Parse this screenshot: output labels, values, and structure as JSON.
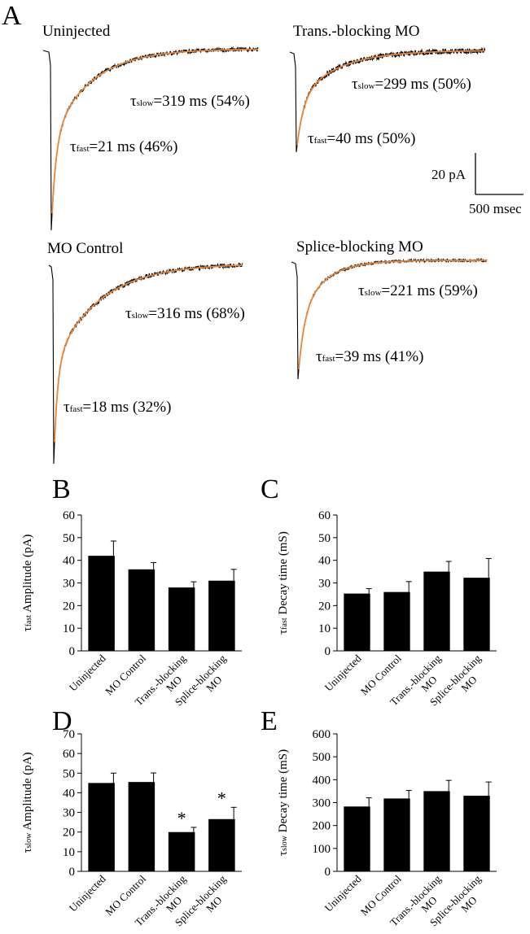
{
  "panel_a": {
    "letter": "A",
    "scale_bar": {
      "amplitude": "20 pA",
      "time": "500 msec"
    },
    "traces": [
      {
        "title": "Uninjected",
        "tau_slow": "=319 ms (54%)",
        "tau_fast": "=21 ms (46%)"
      },
      {
        "title": "Trans.-blocking MO",
        "tau_slow": "=299 ms (50%)",
        "tau_fast": "=40 ms (50%)"
      },
      {
        "title": "MO Control",
        "tau_slow": "=316 ms (68%)",
        "tau_fast": "=18 ms (32%)"
      },
      {
        "title": "Splice-blocking MO",
        "tau_slow": "=221 ms (59%)",
        "tau_fast": "=39 ms (41%)"
      }
    ],
    "tau_symbol": "τ",
    "sub_slow": "slow",
    "sub_fast": "fast",
    "colors": {
      "trace": "#000000",
      "fit": "#e8873a"
    }
  },
  "chart_data": [
    {
      "type": "bar",
      "panel": "B",
      "categories": [
        "Uninjected",
        "MO Control",
        "Trans.-blocking MO",
        "Splice-blocking MO"
      ],
      "values": [
        42,
        36,
        28,
        31
      ],
      "errors": [
        6.5,
        3,
        2.5,
        5
      ],
      "ylabel_symbol": "τ",
      "ylabel_sub": "fast",
      "ylabel_rest": " Amplitude (pA)",
      "ylim": [
        0,
        60
      ],
      "yticks": [
        0,
        10,
        20,
        30,
        40,
        50,
        60
      ],
      "significant": [
        false,
        false,
        false,
        false
      ]
    },
    {
      "type": "bar",
      "panel": "C",
      "categories": [
        "Uninjected",
        "MO Control",
        "Trans.-blocking MO",
        "Splice-blocking MO"
      ],
      "values": [
        25.3,
        26,
        35,
        32.3
      ],
      "errors": [
        2.2,
        4.6,
        4.5,
        8.5
      ],
      "ylabel_symbol": "τ",
      "ylabel_sub": "fast",
      "ylabel_rest": " Decay time (mS)",
      "ylim": [
        0,
        60
      ],
      "yticks": [
        0,
        10,
        20,
        30,
        40,
        50,
        60
      ],
      "significant": [
        false,
        false,
        false,
        false
      ]
    },
    {
      "type": "bar",
      "panel": "D",
      "categories": [
        "Uninjected",
        "MO Control",
        "Trans.-blocking MO",
        "Splice-blocking MO"
      ],
      "values": [
        45,
        45.5,
        20,
        26.6
      ],
      "errors": [
        5,
        4.6,
        2.4,
        6
      ],
      "ylabel_symbol": "τ",
      "ylabel_sub": "slow",
      "ylabel_rest": " Amplitude (pA)",
      "ylim": [
        0,
        70
      ],
      "yticks": [
        0,
        10,
        20,
        30,
        40,
        50,
        60,
        70
      ],
      "significant": [
        false,
        false,
        true,
        true
      ],
      "significance_marker": "*"
    },
    {
      "type": "bar",
      "panel": "E",
      "categories": [
        "Uninjected",
        "MO Control",
        "Trans.-blocking MO",
        "Splice-blocking MO"
      ],
      "values": [
        283,
        318,
        350,
        330
      ],
      "errors": [
        38,
        35,
        47,
        60
      ],
      "ylabel_symbol": "τ",
      "ylabel_sub": "slow",
      "ylabel_rest": " Decay time (mS)",
      "ylim": [
        0,
        600
      ],
      "yticks": [
        0,
        100,
        200,
        300,
        400,
        500,
        600
      ],
      "significant": [
        false,
        false,
        false,
        false
      ]
    }
  ]
}
